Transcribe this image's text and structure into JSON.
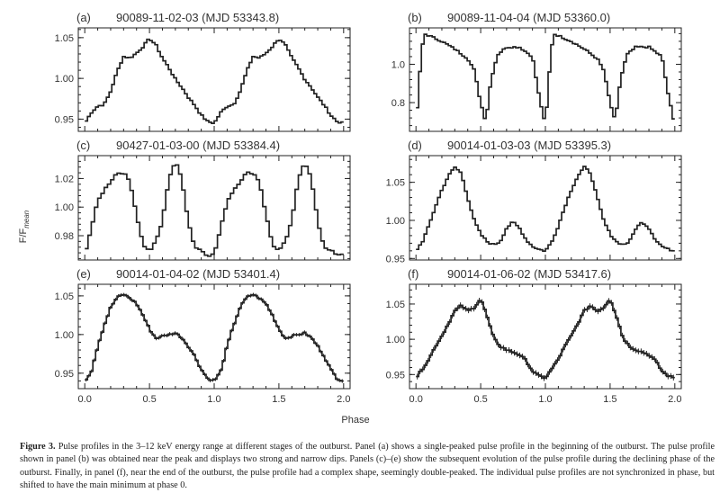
{
  "figure": {
    "x_axis_label": "Phase",
    "y_axis_label": "F/F",
    "y_axis_label_sub": "mean",
    "x_ticks": [
      "0.0",
      "0.5",
      "1.0",
      "1.5",
      "2.0"
    ]
  },
  "caption": {
    "label": "Figure 3.",
    "text": "Pulse profiles in the 3–12 keV energy range at different stages of the outburst. Panel (a) shows a single-peaked pulse profile in the beginning of the outburst. The pulse profile shown in panel (b) was obtained near the peak and displays two strong and narrow dips. Panels (c)–(e) show the subsequent evolution of the pulse profile during the declining phase of the outburst. Finally, in panel (f), near the end of the outburst, the pulse profile had a complex shape, seemingly double-peaked. The individual pulse profiles are not synchronized in phase, but shifted to have the main minimum at phase 0."
  },
  "chart_data": [
    {
      "type": "line",
      "panel": "(a)",
      "title": "90089-11-02-03 (MJD 53343.8)",
      "xlabel": "",
      "ylabel": "",
      "xlim": [
        -0.05,
        2.05
      ],
      "ylim": [
        0.935,
        1.062
      ],
      "yticks": [
        "0.95",
        "1.00",
        "1.05"
      ],
      "ytick_values": [
        0.95,
        1.0,
        1.05
      ],
      "x_knots": [
        0,
        0.05,
        0.1,
        0.15,
        0.2,
        0.25,
        0.3,
        0.35,
        0.4,
        0.45,
        0.5,
        0.55,
        0.6,
        0.65,
        0.7,
        0.75,
        0.8,
        0.85,
        0.9,
        0.95,
        1.0
      ],
      "y_knots": [
        0.945,
        0.958,
        0.966,
        0.968,
        0.984,
        1.008,
        1.027,
        1.025,
        1.031,
        1.039,
        1.049,
        1.041,
        1.025,
        1.013,
        0.999,
        0.989,
        0.977,
        0.967,
        0.955,
        0.947,
        0.945
      ],
      "bins": 48,
      "error_bars": false
    },
    {
      "type": "line",
      "panel": "(b)",
      "title": "90089-11-04-04 (MJD 53360.0)",
      "xlabel": "",
      "ylabel": "",
      "xlim": [
        -0.05,
        2.05
      ],
      "ylim": [
        0.65,
        1.19
      ],
      "yticks": [
        "0.8",
        "1.0"
      ],
      "ytick_values": [
        0.8,
        1.0
      ],
      "x_knots": [
        0,
        0.03,
        0.06,
        0.1,
        0.2,
        0.3,
        0.4,
        0.45,
        0.5,
        0.54,
        0.58,
        0.63,
        0.7,
        0.8,
        0.9,
        0.95,
        1.0
      ],
      "y_knots": [
        0.68,
        0.95,
        1.16,
        1.15,
        1.12,
        1.08,
        1.03,
        0.97,
        0.8,
        0.7,
        0.92,
        1.05,
        1.09,
        1.09,
        1.04,
        0.84,
        0.68
      ],
      "bins": 48,
      "error_bars": false
    },
    {
      "type": "line",
      "panel": "(c)",
      "title": "90427-01-03-00 (MJD 53384.4)",
      "xlabel": "",
      "ylabel": "",
      "xlim": [
        -0.05,
        2.05
      ],
      "ylim": [
        0.963,
        1.036
      ],
      "yticks": [
        "0.98",
        "1.00",
        "1.02"
      ],
      "ytick_values": [
        0.98,
        1.0,
        1.02
      ],
      "x_knots": [
        0,
        0.05,
        0.1,
        0.15,
        0.2,
        0.25,
        0.3,
        0.35,
        0.4,
        0.45,
        0.5,
        0.55,
        0.6,
        0.65,
        0.7,
        0.75,
        0.8,
        0.85,
        0.9,
        0.95,
        1.0
      ],
      "y_knots": [
        0.967,
        0.985,
        1.004,
        1.012,
        1.018,
        1.024,
        1.024,
        1.018,
        0.995,
        0.974,
        0.969,
        0.976,
        0.99,
        1.02,
        1.032,
        1.02,
        0.99,
        0.972,
        0.97,
        0.966,
        0.967
      ],
      "bins": 40,
      "error_bars": false
    },
    {
      "type": "line",
      "panel": "(d)",
      "title": "90014-01-03-03 (MJD 53395.3)",
      "xlabel": "",
      "ylabel": "",
      "xlim": [
        -0.05,
        2.05
      ],
      "ylim": [
        0.948,
        1.085
      ],
      "yticks": [
        "0.95",
        "1.00",
        "1.05"
      ],
      "ytick_values": [
        0.95,
        1.0,
        1.05
      ],
      "x_knots": [
        0,
        0.05,
        0.1,
        0.15,
        0.2,
        0.25,
        0.3,
        0.35,
        0.4,
        0.45,
        0.5,
        0.55,
        0.6,
        0.65,
        0.7,
        0.75,
        0.8,
        0.85,
        0.9,
        0.95,
        1.0
      ],
      "y_knots": [
        0.96,
        0.972,
        0.993,
        1.018,
        1.04,
        1.058,
        1.07,
        1.062,
        1.03,
        1.0,
        0.982,
        0.972,
        0.968,
        0.972,
        0.99,
        0.998,
        0.99,
        0.975,
        0.966,
        0.962,
        0.96
      ],
      "bins": 48,
      "error_bars": false
    },
    {
      "type": "line",
      "panel": "(e)",
      "title": "90014-01-04-02 (MJD 53401.4)",
      "xlabel": "",
      "ylabel": "",
      "xlim": [
        -0.05,
        2.05
      ],
      "ylim": [
        0.93,
        1.065
      ],
      "yticks": [
        "0.95",
        "1.00",
        "1.05"
      ],
      "ytick_values": [
        0.95,
        1.0,
        1.05
      ],
      "x_knots": [
        0,
        0.05,
        0.1,
        0.15,
        0.2,
        0.25,
        0.3,
        0.35,
        0.4,
        0.45,
        0.5,
        0.55,
        0.6,
        0.65,
        0.7,
        0.75,
        0.8,
        0.85,
        0.9,
        0.95,
        1.0
      ],
      "y_knots": [
        0.94,
        0.952,
        0.985,
        1.012,
        1.035,
        1.048,
        1.052,
        1.047,
        1.04,
        1.025,
        1.007,
        0.995,
        0.998,
        1.0,
        1.002,
        0.996,
        0.985,
        0.972,
        0.955,
        0.943,
        0.94
      ],
      "bins": 48,
      "error_bars": true
    },
    {
      "type": "line",
      "panel": "(f)",
      "title": "90014-01-06-02 (MJD 53417.6)",
      "xlabel": "",
      "ylabel": "",
      "xlim": [
        -0.05,
        2.05
      ],
      "ylim": [
        0.93,
        1.078
      ],
      "yticks": [
        "0.95",
        "1.00",
        "1.05"
      ],
      "ytick_values": [
        0.95,
        1.0,
        1.05
      ],
      "x_knots": [
        0,
        0.05,
        0.1,
        0.15,
        0.2,
        0.25,
        0.3,
        0.35,
        0.4,
        0.45,
        0.5,
        0.55,
        0.6,
        0.65,
        0.7,
        0.75,
        0.8,
        0.85,
        0.9,
        0.95,
        1.0
      ],
      "y_knots": [
        0.945,
        0.958,
        0.972,
        0.99,
        1.005,
        1.022,
        1.04,
        1.048,
        1.04,
        1.045,
        1.058,
        1.032,
        1.002,
        0.99,
        0.985,
        0.982,
        0.978,
        0.97,
        0.955,
        0.948,
        0.945
      ],
      "bins": 48,
      "error_bars": true
    }
  ]
}
